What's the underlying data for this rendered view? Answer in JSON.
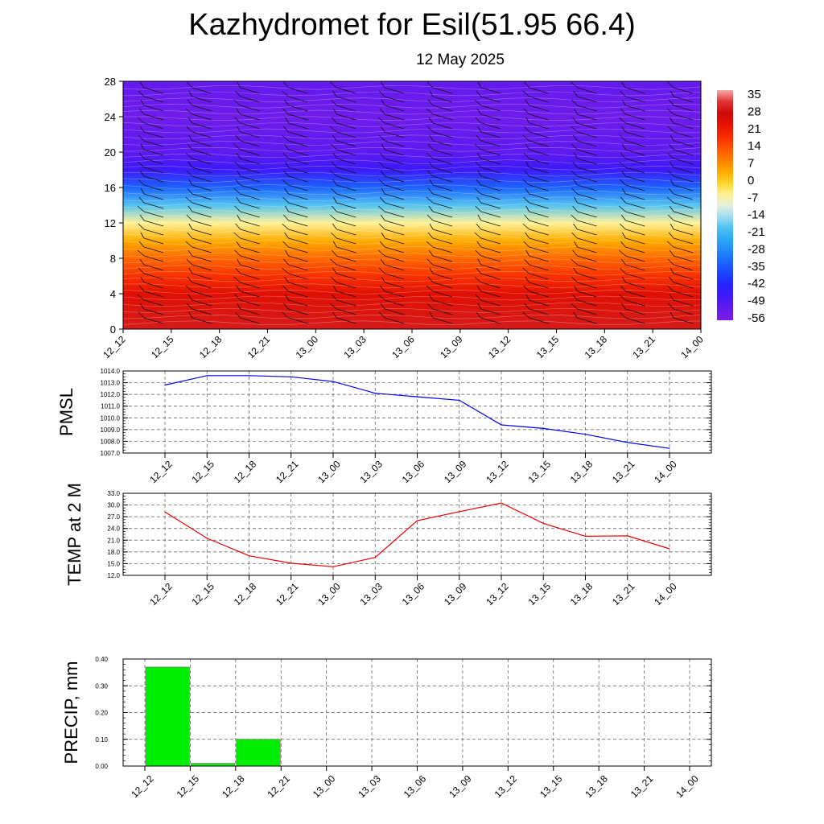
{
  "title": "Kazhydromet for Esil(51.95 66.4)",
  "subtitle": "12 May 2025",
  "time_labels": [
    "12_12",
    "12_15",
    "12_18",
    "12_21",
    "13_00",
    "13_03",
    "13_06",
    "13_09",
    "13_12",
    "13_15",
    "13_18",
    "13_21",
    "14_00"
  ],
  "chart_data": [
    {
      "type": "heatmap",
      "panel": "cross-section",
      "x": [
        "12_12",
        "12_15",
        "12_18",
        "12_21",
        "13_00",
        "13_03",
        "13_06",
        "13_09",
        "13_12",
        "13_15",
        "13_18",
        "13_21",
        "14_00"
      ],
      "y_ticks": [
        "0",
        "4",
        "8",
        "12",
        "16",
        "20",
        "24",
        "28"
      ],
      "ylim": [
        0,
        28
      ],
      "colorbar": {
        "labels": [
          "35",
          "28",
          "21",
          "14",
          "7",
          "0",
          "-7",
          "-14",
          "-21",
          "-28",
          "-35",
          "-42",
          "-49",
          "-56"
        ],
        "range": [
          -63,
          38
        ]
      },
      "profile_by_level": [
        {
          "level": 0,
          "value": 30
        },
        {
          "level": 4,
          "value": 24
        },
        {
          "level": 6,
          "value": 17
        },
        {
          "level": 8,
          "value": 10
        },
        {
          "level": 10,
          "value": 2
        },
        {
          "level": 12,
          "value": -8
        },
        {
          "level": 14,
          "value": -22
        },
        {
          "level": 16,
          "value": -38
        },
        {
          "level": 18,
          "value": -52
        },
        {
          "level": 20,
          "value": -57
        },
        {
          "level": 24,
          "value": -60
        },
        {
          "level": 28,
          "value": -58
        }
      ],
      "wind_barbs": true,
      "grid": false
    },
    {
      "type": "line",
      "ylabel": "PMSL",
      "x": [
        "12_12",
        "12_15",
        "12_18",
        "12_21",
        "13_00",
        "13_03",
        "13_06",
        "13_09",
        "13_12",
        "13_15",
        "13_18",
        "13_21",
        "14_00"
      ],
      "y_ticks": [
        "1007.0",
        "1008.0",
        "1009.0",
        "1010.0",
        "1011.0",
        "1012.0",
        "1013.0",
        "1014.0"
      ],
      "ylim": [
        1007.0,
        1014.0
      ],
      "series": [
        {
          "values": [
            1012.8,
            1013.6,
            1013.6,
            1013.5,
            1013.1,
            1012.1,
            1011.8,
            1011.5,
            1009.4,
            1009.1,
            1008.6,
            1007.9,
            1007.4
          ]
        }
      ],
      "color": "#0000ee",
      "grid": true
    },
    {
      "type": "line",
      "ylabel": "TEMP at 2 M",
      "x": [
        "12_12",
        "12_15",
        "12_18",
        "12_21",
        "13_00",
        "13_03",
        "13_06",
        "13_09",
        "13_12",
        "13_15",
        "13_18",
        "13_21",
        "14_00"
      ],
      "y_ticks": [
        "12.0",
        "15.0",
        "18.0",
        "21.0",
        "24.0",
        "27.0",
        "30.0",
        "33.0"
      ],
      "ylim": [
        12.0,
        33.0
      ],
      "series": [
        {
          "values": [
            28.2,
            21.5,
            17.0,
            15.1,
            14.2,
            16.6,
            26.0,
            28.3,
            30.5,
            25.3,
            22.0,
            22.1,
            18.8
          ]
        }
      ],
      "color": "#ee0000",
      "grid": true
    },
    {
      "type": "bar",
      "ylabel": "PRECIP, mm",
      "x": [
        "12_12",
        "12_15",
        "12_18",
        "12_21",
        "13_00",
        "13_03",
        "13_06",
        "13_09",
        "13_12",
        "13_15",
        "13_18",
        "13_21",
        "14_00"
      ],
      "y_ticks": [
        "0.00",
        "0.10",
        "0.20",
        "0.30",
        "0.40"
      ],
      "ylim": [
        0.0,
        0.4
      ],
      "series": [
        {
          "values": [
            0,
            0.37,
            0.01,
            0.1,
            0,
            0,
            0,
            0,
            0,
            0,
            0,
            0,
            0
          ]
        }
      ],
      "color": "#00ee00",
      "grid": true
    }
  ]
}
